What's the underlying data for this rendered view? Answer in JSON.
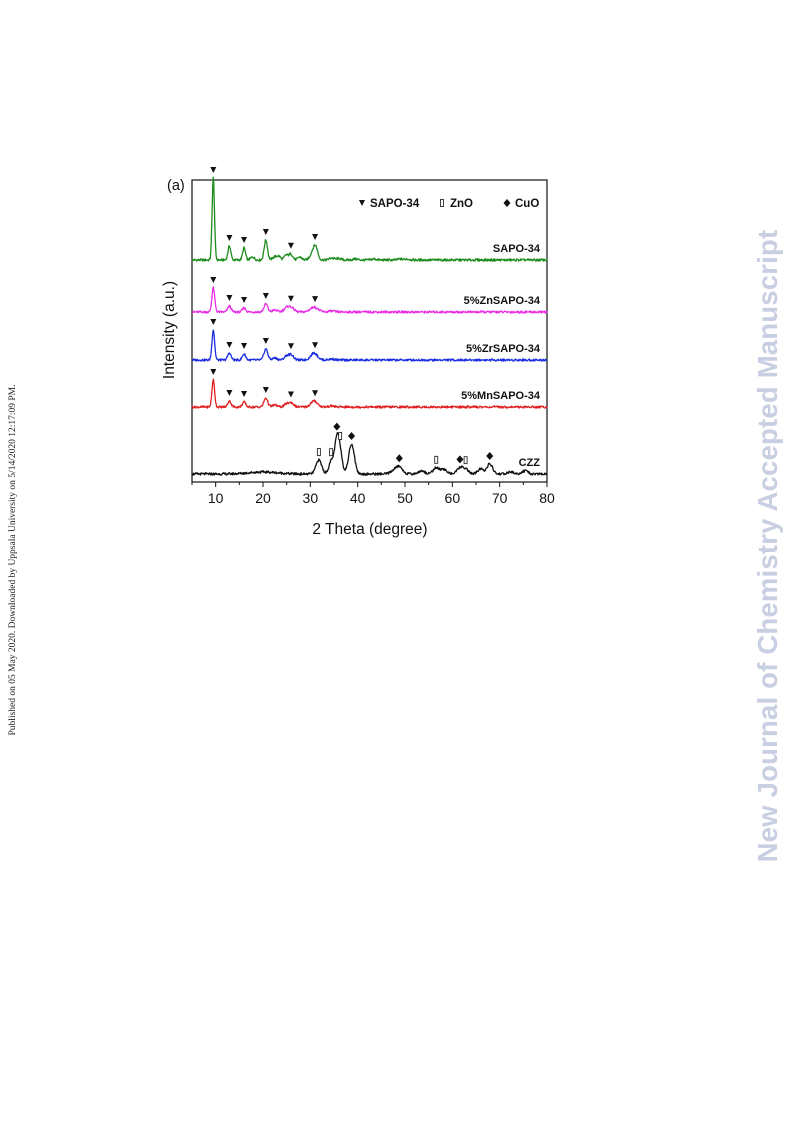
{
  "side_note": "Published on 05 May 2020. Downloaded by Uppsala University on 5/14/2020 12:17:09 PM.",
  "watermark": "New Journal of Chemistry Accepted Manuscript",
  "chart_data": {
    "type": "line",
    "panel_label": "(a)",
    "xlabel": "2 Theta (degree)",
    "ylabel": "Intensity (a.u.)",
    "xlim": [
      5,
      80
    ],
    "xticks": [
      10,
      20,
      30,
      40,
      50,
      60,
      70,
      80
    ],
    "grid": false,
    "legend_position": "top-right",
    "legend": [
      {
        "marker": "▼",
        "label": "SAPO-34",
        "marker_type": "triangle"
      },
      {
        "marker": "▯",
        "label": "ZnO",
        "marker_type": "rect"
      },
      {
        "marker": "◆",
        "label": "CuO",
        "marker_type": "diamond"
      }
    ],
    "series": [
      {
        "name": "SAPO-34",
        "color": "#1e8c1e",
        "baseline": 260,
        "noise": 1.2,
        "peaks": [
          [
            9.5,
            82,
            0.25
          ],
          [
            12.9,
            14,
            0.3
          ],
          [
            16.0,
            12,
            0.3
          ],
          [
            17.8,
            3,
            0.4
          ],
          [
            20.6,
            20,
            0.35
          ],
          [
            22.4,
            3,
            0.4
          ],
          [
            23.3,
            4,
            0.4
          ],
          [
            24.9,
            5,
            0.4
          ],
          [
            25.9,
            6,
            0.4
          ],
          [
            27.8,
            3,
            0.4
          ],
          [
            30.7,
            10,
            0.6
          ],
          [
            31.2,
            7,
            0.4
          ],
          [
            34.5,
            2,
            0.5
          ],
          [
            36.0,
            1.5,
            0.5
          ],
          [
            39.5,
            1,
            0.5
          ],
          [
            43.5,
            1,
            0.5
          ],
          [
            49.0,
            1,
            0.5
          ],
          [
            50.5,
            1,
            0.5
          ]
        ]
      },
      {
        "name": "5%ZnSAPO-34",
        "color": "#e62ee6",
        "baseline": 312,
        "noise": 1.1,
        "peaks": [
          [
            9.5,
            24,
            0.3
          ],
          [
            12.9,
            6,
            0.35
          ],
          [
            16.0,
            4,
            0.35
          ],
          [
            20.6,
            8,
            0.4
          ],
          [
            22.5,
            2,
            0.5
          ],
          [
            25.0,
            4,
            0.6
          ],
          [
            26.0,
            4,
            0.6
          ],
          [
            30.8,
            5,
            0.8
          ],
          [
            34.5,
            1,
            0.6
          ]
        ]
      },
      {
        "name": "5%ZrSAPO-34",
        "color": "#1a2ee0",
        "baseline": 360,
        "noise": 1.1,
        "peaks": [
          [
            9.5,
            30,
            0.28
          ],
          [
            12.9,
            7,
            0.35
          ],
          [
            16.0,
            6,
            0.35
          ],
          [
            20.6,
            11,
            0.4
          ],
          [
            22.5,
            2,
            0.5
          ],
          [
            25.0,
            4,
            0.5
          ],
          [
            26.0,
            5,
            0.5
          ],
          [
            30.8,
            7,
            0.7
          ],
          [
            34.5,
            1,
            0.6
          ]
        ]
      },
      {
        "name": "5%MnSAPO-34",
        "color": "#e02020",
        "baseline": 407,
        "noise": 1.1,
        "peaks": [
          [
            9.5,
            27,
            0.28
          ],
          [
            12.9,
            6,
            0.35
          ],
          [
            16.0,
            5,
            0.35
          ],
          [
            20.6,
            9,
            0.4
          ],
          [
            22.5,
            2,
            0.5
          ],
          [
            25.0,
            3,
            0.5
          ],
          [
            26.0,
            4,
            0.5
          ],
          [
            30.8,
            6,
            0.7
          ],
          [
            34.5,
            1,
            0.6
          ]
        ]
      },
      {
        "name": "CZZ",
        "color": "#111111",
        "baseline": 474,
        "noise": 1.2,
        "peaks": [
          [
            20.0,
            2,
            3.0
          ],
          [
            31.8,
            14,
            0.6
          ],
          [
            34.4,
            12,
            0.5
          ],
          [
            35.6,
            32,
            0.5
          ],
          [
            36.3,
            18,
            0.5
          ],
          [
            38.7,
            30,
            0.6
          ],
          [
            47.6,
            3,
            0.7
          ],
          [
            48.8,
            7,
            0.7
          ],
          [
            53.5,
            3,
            0.7
          ],
          [
            56.6,
            6,
            0.7
          ],
          [
            58.3,
            4,
            0.7
          ],
          [
            61.6,
            6,
            0.6
          ],
          [
            62.8,
            5,
            0.6
          ],
          [
            66.0,
            5,
            0.6
          ],
          [
            67.9,
            10,
            0.6
          ],
          [
            72.3,
            2,
            0.6
          ],
          [
            75.3,
            3,
            0.6
          ]
        ]
      }
    ],
    "markers": [
      {
        "series": "SAPO-34",
        "type": "triangle",
        "x": [
          9.5,
          12.9,
          16.0,
          20.6,
          25.9,
          31.0
        ]
      },
      {
        "series": "5%ZnSAPO-34",
        "type": "triangle",
        "x": [
          9.5,
          12.9,
          16.0,
          20.6,
          25.9,
          31.0
        ]
      },
      {
        "series": "5%ZrSAPO-34",
        "type": "triangle",
        "x": [
          9.5,
          12.9,
          16.0,
          20.6,
          25.9,
          31.0
        ]
      },
      {
        "series": "5%MnSAPO-34",
        "type": "triangle",
        "x": [
          9.5,
          12.9,
          16.0,
          20.6,
          25.9,
          31.0
        ]
      },
      {
        "series": "CZZ",
        "type": "rect",
        "x": [
          31.8,
          34.4,
          36.3,
          56.6,
          62.8
        ]
      },
      {
        "series": "CZZ",
        "type": "diamond",
        "x": [
          35.6,
          38.7,
          48.8,
          61.6,
          67.9
        ]
      }
    ]
  }
}
